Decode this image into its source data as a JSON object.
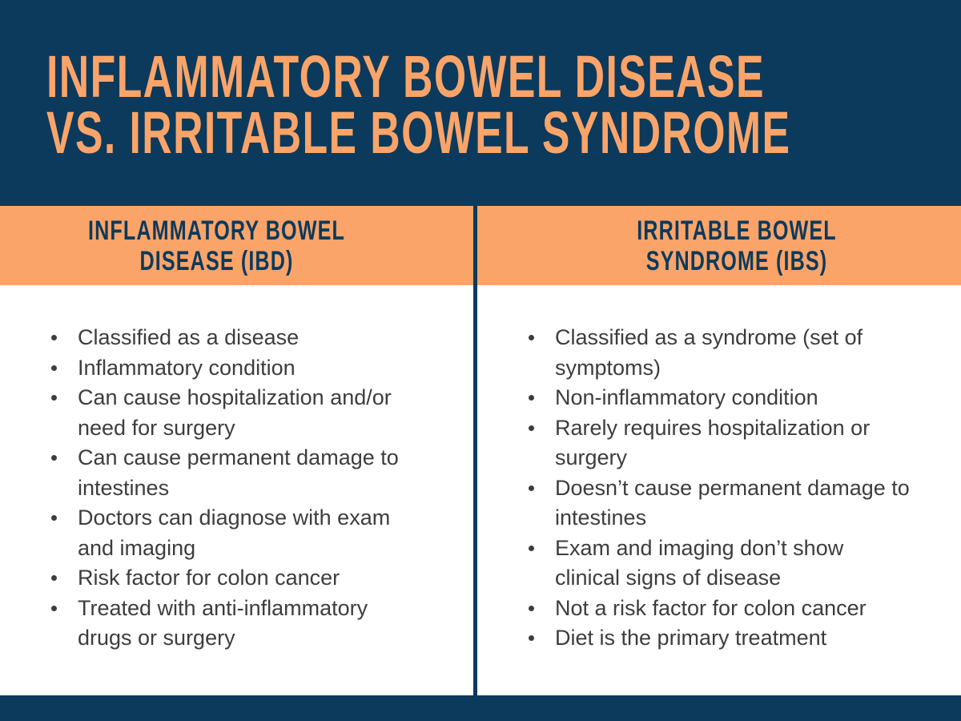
{
  "title": {
    "line1": "INFLAMMATORY BOWEL DISEASE",
    "line2": "VS. IRRITABLE BOWEL SYNDROME"
  },
  "columns": {
    "left": {
      "header_line1": "INFLAMMATORY BOWEL",
      "header_line2": "DISEASE (IBD)",
      "bullets": [
        [
          "Classified as a disease"
        ],
        [
          "Inflammatory condition"
        ],
        [
          "Can cause hospitalization and/or",
          "need for surgery"
        ],
        [
          "Can cause permanent damage to",
          "intestines"
        ],
        [
          "Doctors can diagnose with exam",
          "and imaging"
        ],
        [
          "Risk factor for colon cancer"
        ],
        [
          "Treated with anti-inflammatory",
          "drugs or surgery"
        ]
      ]
    },
    "right": {
      "header_line1": "IRRITABLE BOWEL",
      "header_line2": "SYNDROME (IBS)",
      "bullets": [
        [
          "Classified as a syndrome (set of",
          "symptoms)"
        ],
        [
          "Non-inflammatory condition"
        ],
        [
          "Rarely requires hospitalization or",
          "surgery"
        ],
        [
          "Doesn’t cause permanent damage to",
          "intestines"
        ],
        [
          "Exam and imaging don’t show",
          "clinical signs of disease"
        ],
        [
          "Not a risk factor for colon cancer"
        ],
        [
          "Diet is the primary treatment"
        ]
      ]
    }
  },
  "colors": {
    "navy": "#0b3a5c",
    "orange": "#fba469",
    "body_text": "#3d3d3d",
    "background": "#ffffff"
  }
}
